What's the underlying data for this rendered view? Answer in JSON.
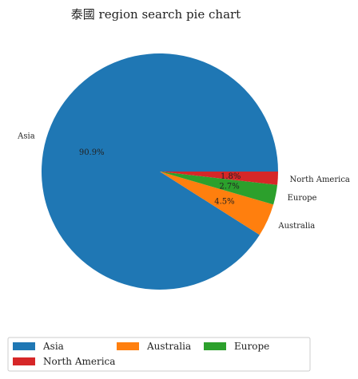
{
  "chart_data": {
    "type": "pie",
    "title": "泰國 region search pie chart",
    "categories": [
      "Asia",
      "Australia",
      "Europe",
      "North America"
    ],
    "values": [
      90.9,
      4.5,
      2.7,
      1.8
    ],
    "percent_labels": [
      "90.9%",
      "4.5%",
      "2.7%",
      "1.8%"
    ],
    "colors": [
      "#1f77b4",
      "#ff7f0e",
      "#2ca02c",
      "#d62728"
    ],
    "legend": {
      "placement": "bottom",
      "columns": 3,
      "entries": [
        "Asia",
        "Australia",
        "Europe",
        "North America"
      ]
    }
  }
}
